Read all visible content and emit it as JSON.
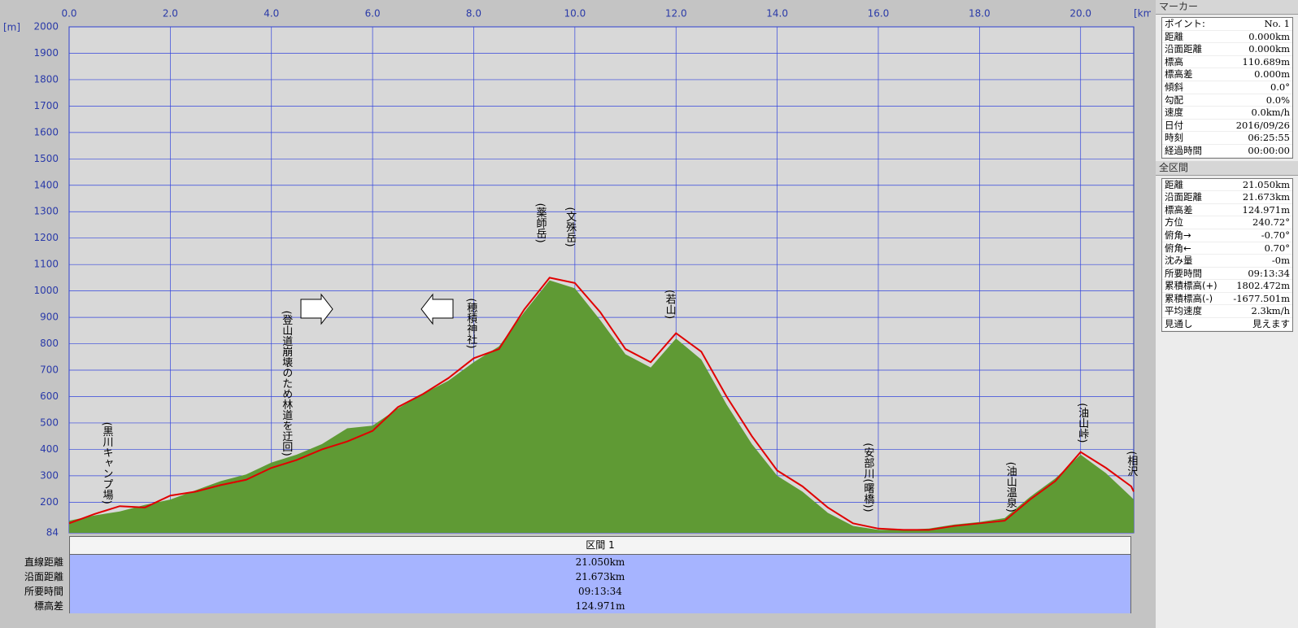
{
  "chart_data": {
    "type": "area",
    "y_label": "[m]",
    "x_label": "[km]",
    "xlim": [
      0,
      21.05
    ],
    "ylim": [
      84,
      2000
    ],
    "xticks": [
      {
        "value": 0,
        "label": "0.0"
      },
      {
        "value": 2,
        "label": "2.0"
      },
      {
        "value": 4,
        "label": "4.0"
      },
      {
        "value": 6,
        "label": "6.0"
      },
      {
        "value": 8,
        "label": "8.0"
      },
      {
        "value": 10,
        "label": "10.0"
      },
      {
        "value": 12,
        "label": "12.0"
      },
      {
        "value": 14,
        "label": "14.0"
      },
      {
        "value": 16,
        "label": "16.0"
      },
      {
        "value": 18,
        "label": "18.0"
      },
      {
        "value": 20,
        "label": "20.0"
      }
    ],
    "yticks": [
      84,
      200,
      300,
      400,
      500,
      600,
      700,
      800,
      900,
      1000,
      1100,
      1200,
      1300,
      1400,
      1500,
      1600,
      1700,
      1800,
      1900,
      2000
    ],
    "grid": true,
    "x": [
      0,
      0.5,
      1,
      1.5,
      2,
      2.5,
      3,
      3.5,
      4,
      4.5,
      5,
      5.5,
      6,
      6.5,
      7,
      7.5,
      8,
      8.5,
      9,
      9.5,
      10,
      10.5,
      11,
      11.5,
      12,
      12.5,
      13,
      13.5,
      14,
      14.5,
      15,
      15.5,
      16,
      16.5,
      17,
      17.5,
      18,
      18.5,
      19,
      19.5,
      20,
      20.5,
      21,
      21.05
    ],
    "series": [
      {
        "type": "area",
        "color": "#5f9a34",
        "values": [
          130,
          150,
          165,
          190,
          210,
          245,
          280,
          305,
          350,
          380,
          420,
          480,
          490,
          555,
          610,
          660,
          730,
          790,
          920,
          1040,
          1010,
          890,
          760,
          710,
          820,
          740,
          570,
          420,
          300,
          240,
          160,
          110,
          95,
          95,
          100,
          115,
          125,
          140,
          220,
          290,
          380,
          310,
          220,
          210
        ]
      },
      {
        "type": "line",
        "color": "#e00000",
        "values": [
          120,
          155,
          185,
          180,
          225,
          240,
          265,
          285,
          330,
          360,
          400,
          430,
          470,
          560,
          610,
          670,
          745,
          780,
          930,
          1050,
          1030,
          920,
          780,
          730,
          840,
          770,
          600,
          450,
          320,
          260,
          180,
          120,
          100,
          95,
          95,
          110,
          120,
          130,
          210,
          280,
          390,
          330,
          260,
          240
        ]
      }
    ],
    "annotations": [
      {
        "text": "(黒川キャンプ場)",
        "x": 0.74,
        "y": 504
      },
      {
        "text": "(登山道崩壊のため林道を迂回)",
        "x": 4.29,
        "y": 926
      },
      {
        "text": "(穂積神社)",
        "x": 7.94,
        "y": 973
      },
      {
        "text": "(薬師岳)",
        "x": 9.31,
        "y": 1333
      },
      {
        "text": "(文殊岳)",
        "x": 9.9,
        "y": 1318
      },
      {
        "text": "(若山)",
        "x": 11.87,
        "y": 1005
      },
      {
        "text": "(安部川(曙橋))",
        "x": 15.79,
        "y": 425
      },
      {
        "text": "(油山温泉)",
        "x": 18.61,
        "y": 353
      },
      {
        "text": "(油山峠)",
        "x": 20.03,
        "y": 576
      },
      {
        "text": "(相沢",
        "x": 21.0,
        "y": 394
      }
    ]
  },
  "section": {
    "header": "区間 1",
    "rows": [
      [
        "直線距離",
        "21.050km"
      ],
      [
        "沿面距離",
        "21.673km"
      ],
      [
        "所要時間",
        "09:13:34"
      ],
      [
        "標高差",
        "124.971m"
      ]
    ]
  },
  "marker": {
    "title": "マーカー",
    "rows": [
      [
        "ポイント:",
        "No. 1"
      ],
      [
        "距離",
        "0.000km"
      ],
      [
        "沿面距離",
        "0.000km"
      ],
      [
        "標高",
        "110.689m"
      ],
      [
        "標高差",
        "0.000m"
      ],
      [
        "傾斜",
        "0.0°"
      ],
      [
        "勾配",
        "0.0%"
      ],
      [
        "速度",
        "0.0km/h"
      ],
      [
        "日付",
        "2016/09/26"
      ],
      [
        "時刻",
        "06:25:55"
      ],
      [
        "経過時間",
        "00:00:00"
      ]
    ]
  },
  "total": {
    "title": "全区間",
    "rows": [
      [
        "距離",
        "21.050km"
      ],
      [
        "沿面距離",
        "21.673km"
      ],
      [
        "標高差",
        "124.971m"
      ],
      [
        "方位",
        "240.72°"
      ],
      [
        "俯角→",
        "-0.70°"
      ],
      [
        "俯角←",
        "0.70°"
      ],
      [
        "沈み量",
        "-0m"
      ],
      [
        "所要時間",
        "09:13:34"
      ],
      [
        "累積標高(+)",
        "1802.472m"
      ],
      [
        "累積標高(-)",
        "-1677.501m"
      ],
      [
        "平均速度",
        "2.3km/h"
      ],
      [
        "見通し",
        "見えます"
      ]
    ]
  }
}
